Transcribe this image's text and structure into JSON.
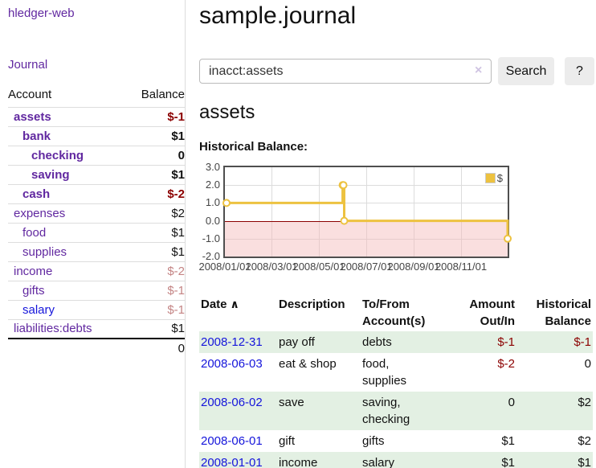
{
  "theme": {
    "link_purple": "#6128a0",
    "link_blue": "#1515db",
    "negative_strong": "#8b0000",
    "negative_faded": "#c48484",
    "row_green": "#e3f0e3",
    "chart_gold": "#EDC240"
  },
  "sidebar": {
    "brand": "hledger-web",
    "journal_link": "Journal",
    "accounts": {
      "col_account": "Account",
      "col_balance": "Balance",
      "rows": [
        {
          "name": "assets",
          "depth": 1,
          "balance": "$-1",
          "bold": true,
          "neg": "strong"
        },
        {
          "name": "bank",
          "depth": 2,
          "balance": "$1",
          "bold": true,
          "neg": "none"
        },
        {
          "name": "checking",
          "depth": 3,
          "balance": "0",
          "bold": true,
          "neg": "none"
        },
        {
          "name": "saving",
          "depth": 3,
          "balance": "$1",
          "bold": true,
          "neg": "none"
        },
        {
          "name": "cash",
          "depth": 2,
          "balance": "$-2",
          "bold": true,
          "neg": "strong"
        },
        {
          "name": "expenses",
          "depth": 1,
          "balance": "$2",
          "bold": false,
          "neg": "none"
        },
        {
          "name": "food",
          "depth": 2,
          "balance": "$1",
          "bold": false,
          "neg": "none"
        },
        {
          "name": "supplies",
          "depth": 2,
          "balance": "$1",
          "bold": false,
          "neg": "none"
        },
        {
          "name": "income",
          "depth": 1,
          "balance": "$-2",
          "bold": false,
          "neg": "faded"
        },
        {
          "name": "gifts",
          "depth": 2,
          "balance": "$-1",
          "bold": false,
          "neg": "faded"
        },
        {
          "name": "salary",
          "depth": 2,
          "balance": "$-1",
          "bold": false,
          "neg": "faded",
          "unvisited": true
        },
        {
          "name": "liabilities:debts",
          "depth": 1,
          "balance": "$1",
          "bold": false,
          "neg": "none"
        }
      ],
      "total": "0"
    }
  },
  "header": {
    "title": "sample.journal"
  },
  "search": {
    "value": "inacct:assets",
    "clear_label": "×",
    "button_label": "Search",
    "help_label": "?"
  },
  "account_page": {
    "heading": "assets",
    "chart_title": "Historical Balance:"
  },
  "chart_data": {
    "type": "line",
    "step": true,
    "title": "Historical Balance:",
    "series": [
      {
        "name": "$",
        "color": "#EDC240",
        "points": [
          {
            "date": "2008-01-01",
            "value": 1
          },
          {
            "date": "2008-06-01",
            "value": 2
          },
          {
            "date": "2008-06-02",
            "value": 2
          },
          {
            "date": "2008-06-03",
            "value": 0
          },
          {
            "date": "2008-12-31",
            "value": -1
          }
        ]
      }
    ],
    "ylim": [
      -2,
      3
    ],
    "y_ticks": [
      "3.0",
      "2.0",
      "1.0",
      "0.0",
      "-1.0",
      "-2.0"
    ],
    "x_ticks": [
      "2008/01/01",
      "2008/03/01",
      "2008/05/01",
      "2008/07/01",
      "2008/09/01",
      "2008/11/01"
    ],
    "xrange": [
      "2008-01-01",
      "2008-12-31"
    ],
    "grid": true,
    "legend_position": "top-right",
    "negative_region": true,
    "colors": {
      "line": "#EDC240",
      "marker_fill": "#ffffff",
      "negative_fill": "#f9dcdc",
      "zero_line": "#8b0000",
      "border": "#4f4f4f",
      "gridline": "#dcdcdc"
    }
  },
  "register": {
    "headers": {
      "date": "Date",
      "sort_icon": "∧",
      "description": "Description",
      "tofrom1": "To/From",
      "tofrom2": "Account(s)",
      "amount1": "Amount",
      "amount2": "Out/In",
      "hist1": "Historical",
      "hist2": "Balance"
    },
    "rows": [
      {
        "date": "2008-12-31",
        "description": "pay off",
        "accounts": "debts",
        "amount": "$-1",
        "amount_neg": true,
        "balance": "$-1",
        "balance_neg": true,
        "accounts_two_lines": false
      },
      {
        "date": "2008-06-03",
        "description": "eat & shop",
        "accounts": "food, supplies",
        "amount": "$-2",
        "amount_neg": true,
        "balance": "0",
        "balance_neg": false,
        "accounts_two_lines": false
      },
      {
        "date": "2008-06-02",
        "description": "save",
        "accounts": "saving, checking",
        "amount": "0",
        "amount_neg": false,
        "balance": "$2",
        "balance_neg": false,
        "accounts_two_lines": true
      },
      {
        "date": "2008-06-01",
        "description": "gift",
        "accounts": "gifts",
        "amount": "$1",
        "amount_neg": false,
        "balance": "$2",
        "balance_neg": false,
        "accounts_two_lines": false
      },
      {
        "date": "2008-01-01",
        "description": "income",
        "accounts": "salary",
        "amount": "$1",
        "amount_neg": false,
        "balance": "$1",
        "balance_neg": false,
        "accounts_two_lines": false
      }
    ]
  }
}
